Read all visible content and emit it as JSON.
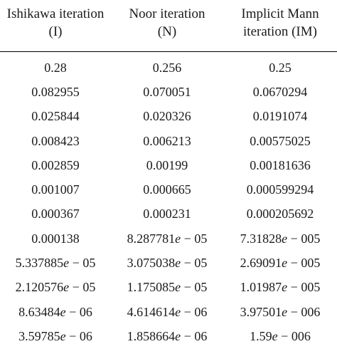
{
  "table": {
    "headers": [
      {
        "line1": "Ishikawa iteration",
        "line2": "(I)"
      },
      {
        "line1": "Noor iteration",
        "line2": "(N)"
      },
      {
        "line1": "Implicit Mann",
        "line2": "iteration (IM)"
      }
    ],
    "rows": [
      [
        "0.28",
        "0.256",
        "0.25"
      ],
      [
        "0.082955",
        "0.070051",
        "0.0670294"
      ],
      [
        "0.025844",
        "0.020326",
        "0.0191074"
      ],
      [
        "0.008423",
        "0.006213",
        "0.00575025"
      ],
      [
        "0.002859",
        "0.00199",
        "0.00181636"
      ],
      [
        "0.001007",
        "0.000665",
        "0.000599294"
      ],
      [
        "0.000367",
        "0.000231",
        "0.000205692"
      ],
      [
        "0.000138",
        "8.287781e − 05",
        "7.31828e − 005"
      ],
      [
        "5.337885e − 05",
        "3.075038e − 05",
        "2.69091e − 005"
      ],
      [
        "2.120576e − 05",
        "1.175085e − 05",
        "1.01987e − 005"
      ],
      [
        "8.63484e − 06",
        "4.614614e − 06",
        "3.97501e − 006"
      ],
      [
        "3.59785e − 06",
        "1.858664e − 06",
        "1.59e − 006"
      ]
    ]
  }
}
